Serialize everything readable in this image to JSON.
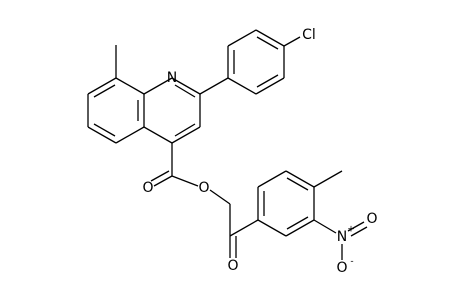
{
  "atoms": {
    "quinoline_n": "N",
    "chlorine": "Cl",
    "ester_carbonyl_o": "O",
    "ester_o": "O",
    "ketone_o": "O",
    "nitro_n": "N",
    "nitro_charge_plus": "+",
    "nitro_o_top": "O",
    "nitro_o_bottom": "O",
    "nitro_charge_minus": "-"
  }
}
